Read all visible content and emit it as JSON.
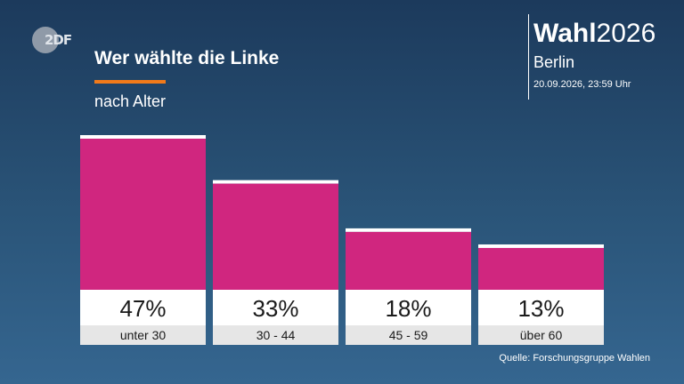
{
  "header": {
    "logo_text": "2DF",
    "title": "Wer wählte die Linke",
    "subtitle": "nach Alter"
  },
  "brand": {
    "wahl": "Wahl",
    "year": "2026",
    "region": "Berlin",
    "timestamp": "20.09.2026, 23:59 Uhr"
  },
  "colors": {
    "bar": "#d0267f",
    "accent": "#f27a1a",
    "label_bg": "#ffffff",
    "category_bg": "#e6e6e6"
  },
  "chart_data": {
    "type": "bar",
    "categories": [
      "unter 30",
      "30 - 44",
      "45 - 59",
      "über 60"
    ],
    "values": [
      47,
      33,
      18,
      13
    ],
    "value_labels": [
      "47%",
      "33%",
      "18%",
      "13%"
    ],
    "title": "Wer wählte die Linke",
    "subtitle": "nach Alter",
    "ylim": [
      0,
      47
    ],
    "grid": false
  },
  "source": "Quelle: Forschungsgruppe Wahlen"
}
